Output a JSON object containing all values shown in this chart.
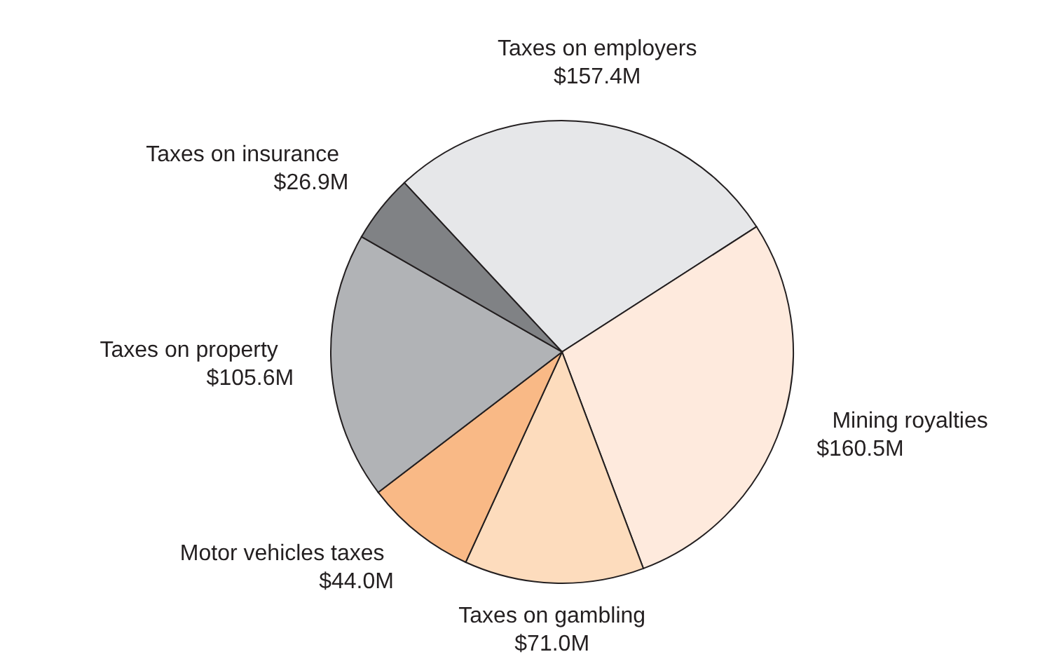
{
  "chart_data": {
    "type": "pie",
    "categories": [
      "Taxes on employers",
      "Mining royalties",
      "Taxes on gambling",
      "Motor vehicles taxes",
      "Taxes on property",
      "Taxes on insurance"
    ],
    "values": [
      157.4,
      160.5,
      71.0,
      44.0,
      105.6,
      26.9
    ],
    "value_labels": [
      "$157.4M",
      "$160.5M",
      "$71.0M",
      "$44.0M",
      "$105.6M",
      "$26.9M"
    ],
    "colors": [
      "#e6e7e9",
      "#feeadd",
      "#fddcbd",
      "#f9b986",
      "#b1b3b6",
      "#808285"
    ],
    "legend": false
  }
}
